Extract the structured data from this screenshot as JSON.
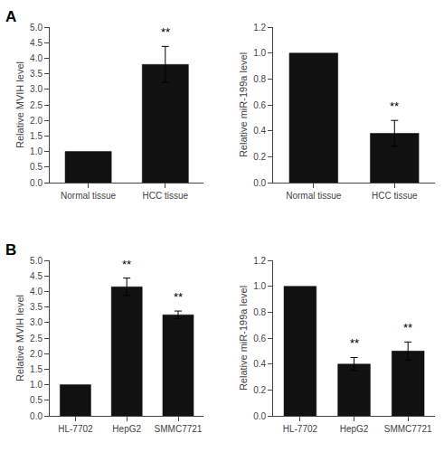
{
  "chart_data": [
    {
      "type": "bar",
      "title": "A",
      "categories": [
        "Normal tissue",
        "HCC tissue"
      ],
      "values": [
        1.0,
        3.8
      ],
      "errors": [
        0.0,
        0.58
      ],
      "ylabel": "Relative MVIH level",
      "ylim": [
        0,
        5.0
      ],
      "yticks": [
        {
          "value": 0,
          "label": "0.0"
        },
        0.5,
        {
          "value": 1,
          "label": "1.0"
        },
        1.5,
        {
          "value": 2,
          "label": "2.0"
        },
        2.5,
        {
          "value": 3,
          "label": "3.0"
        },
        3.5,
        {
          "value": 4,
          "label": "4.0"
        },
        4.5,
        {
          "value": 5,
          "label": "5.0"
        }
      ],
      "annotations": [
        {
          "category": "HCC tissue",
          "text": "**"
        }
      ],
      "color": "#111111",
      "grid": false
    },
    {
      "type": "bar",
      "categories": [
        "Normal tissue",
        "HCC tissue"
      ],
      "values": [
        1.0,
        0.38
      ],
      "errors": [
        0.0,
        0.1
      ],
      "ylabel": "Relative miR-199a level",
      "ylim": [
        0,
        1.2
      ],
      "yticks": [
        {
          "value": 0,
          "label": "0.0"
        },
        0.2,
        0.4,
        0.6,
        0.8,
        {
          "value": 1,
          "label": "1.0"
        },
        1.2
      ],
      "annotations": [
        {
          "category": "HCC tissue",
          "text": "**"
        }
      ],
      "color": "#111111",
      "grid": false
    },
    {
      "type": "bar",
      "title": "B",
      "categories": [
        "HL-7702",
        "HepG2",
        "SMMC7721"
      ],
      "values": [
        1.0,
        4.15,
        3.25
      ],
      "errors": [
        0.0,
        0.28,
        0.12
      ],
      "ylabel": "Relative MVIH level",
      "ylim": [
        0,
        5.0
      ],
      "yticks": [
        {
          "value": 0,
          "label": "0.0"
        },
        0.5,
        {
          "value": 1,
          "label": "1.0"
        },
        1.5,
        {
          "value": 2,
          "label": "2.0"
        },
        2.5,
        {
          "value": 3,
          "label": "3.0"
        },
        3.5,
        {
          "value": 4,
          "label": "4.0"
        },
        4.5,
        {
          "value": 5,
          "label": "5.0"
        }
      ],
      "annotations": [
        {
          "category": "HepG2",
          "text": "**"
        },
        {
          "category": "SMMC7721",
          "text": "**"
        }
      ],
      "color": "#111111",
      "grid": false
    },
    {
      "type": "bar",
      "categories": [
        "HL-7702",
        "HepG2",
        "SMMC7721"
      ],
      "values": [
        1.0,
        0.4,
        0.5
      ],
      "errors": [
        0.0,
        0.05,
        0.07
      ],
      "ylabel": "Relative miR-199a level",
      "ylim": [
        0,
        1.2
      ],
      "yticks": [
        {
          "value": 0,
          "label": "0.0"
        },
        0.2,
        0.4,
        0.6,
        0.8,
        {
          "value": 1,
          "label": "1.0"
        },
        1.2
      ],
      "annotations": [
        {
          "category": "HepG2",
          "text": "**"
        },
        {
          "category": "SMMC7721",
          "text": "**"
        }
      ],
      "color": "#111111",
      "grid": false
    }
  ]
}
